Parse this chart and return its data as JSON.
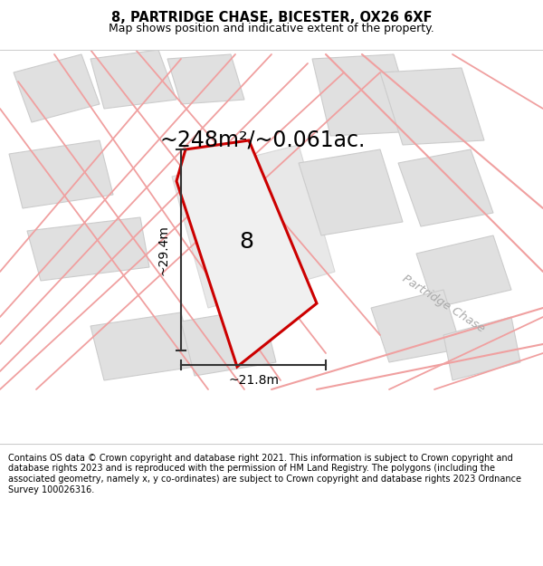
{
  "title": "8, PARTRIDGE CHASE, BICESTER, OX26 6XF",
  "subtitle": "Map shows position and indicative extent of the property.",
  "area_label": "~248m²/~0.061ac.",
  "plot_number": "8",
  "width_label": "~21.8m",
  "height_label": "~29.4m",
  "road_label": "Partridge Chase",
  "footer": "Contains OS data © Crown copyright and database right 2021. This information is subject to Crown copyright and database rights 2023 and is reproduced with the permission of HM Land Registry. The polygons (including the associated geometry, namely x, y co-ordinates) are subject to Crown copyright and database rights 2023 Ordnance Survey 100026316.",
  "bg_color": "#ffffff",
  "map_bg_color": "#f5f4f2",
  "plot_fill_color": "#f0f0f0",
  "plot_edge_color": "#cc0000",
  "road_line_color": "#f0a0a0",
  "building_fill_color": "#e0e0e0",
  "building_edge_color": "#d0d0d0",
  "fig_width": 6.0,
  "fig_height": 6.25,
  "dpi": 100,
  "title_fontsize": 10.5,
  "subtitle_fontsize": 9,
  "area_fontsize": 17,
  "plot_num_fontsize": 18,
  "footer_fontsize": 7.0,
  "road_label_fontsize": 9.5,
  "dim_line_fontsize": 10
}
